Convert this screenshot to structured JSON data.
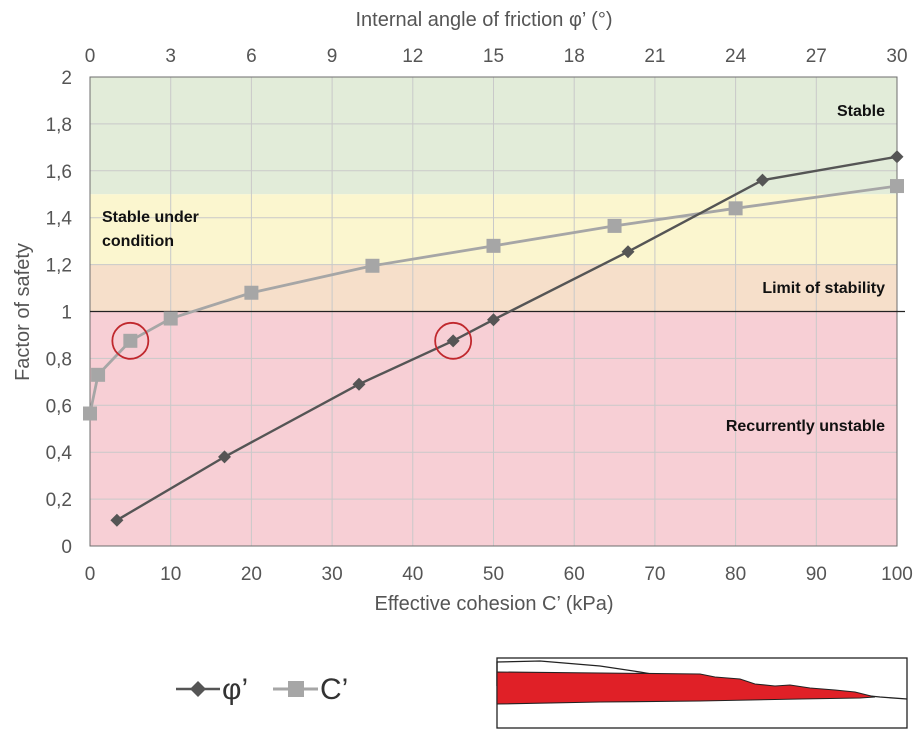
{
  "chart_data": {
    "type": "line",
    "top_axis_title": "Internal angle of friction φ’ (°)",
    "xlabel": "Effective cohesion C’ (kPa)",
    "ylabel": "Factor of safety",
    "xlim": [
      0,
      100
    ],
    "x2lim": [
      0,
      30
    ],
    "ylim": [
      0,
      2
    ],
    "x_ticks": [
      "0",
      "10",
      "20",
      "30",
      "40",
      "50",
      "60",
      "70",
      "80",
      "90",
      "100"
    ],
    "x2_ticks": [
      "0",
      "3",
      "6",
      "9",
      "12",
      "15",
      "18",
      "21",
      "24",
      "27",
      "30"
    ],
    "y_ticks": [
      "0",
      "0,2",
      "0,4",
      "0,6",
      "0,8",
      "1",
      "1,2",
      "1,4",
      "1,6",
      "1,8",
      "2"
    ],
    "grid": true,
    "zones": [
      {
        "label": "Stable",
        "from": 1.5,
        "to": 2.0,
        "color": "#e2ecd9"
      },
      {
        "label": "Stable under condition",
        "label_lines": [
          "Stable under",
          "condition"
        ],
        "from": 1.2,
        "to": 1.5,
        "color": "#fbf6cf"
      },
      {
        "label": "Limit of stability",
        "from": 1.0,
        "to": 1.2,
        "color": "#f6dfca"
      },
      {
        "label": "Recurrently unstable",
        "from": 0.0,
        "to": 1.0,
        "color": "#f7cfd5"
      }
    ],
    "reference_line": 1.0,
    "series": [
      {
        "name": "φ’",
        "axis": "top",
        "marker": "diamond",
        "color": "#555555",
        "x": [
          1,
          5,
          10,
          13.5,
          15,
          20,
          25,
          30
        ],
        "y": [
          0.11,
          0.38,
          0.69,
          0.875,
          0.965,
          1.255,
          1.56,
          1.66
        ]
      },
      {
        "name": "C’",
        "axis": "bottom",
        "marker": "square",
        "color": "#a6a6a6",
        "x": [
          0,
          1,
          5,
          10,
          20,
          35,
          50,
          65,
          80,
          100
        ],
        "y": [
          0.565,
          0.73,
          0.875,
          0.97,
          1.08,
          1.195,
          1.28,
          1.365,
          1.44,
          1.535
        ]
      }
    ],
    "highlighted_points": [
      {
        "series": "C’",
        "x": 5,
        "y": 0.875
      },
      {
        "series": "φ’",
        "x": 13.5,
        "y": 0.875
      }
    ],
    "legend_position": "bottom-left"
  },
  "colors": {
    "plot_border": "#6d6d6d",
    "grid": "#c9c9c9",
    "highlight_circle": "#c0282d",
    "section_fill": "#e02027"
  },
  "inset": {
    "name": "slope-section-sketch"
  }
}
